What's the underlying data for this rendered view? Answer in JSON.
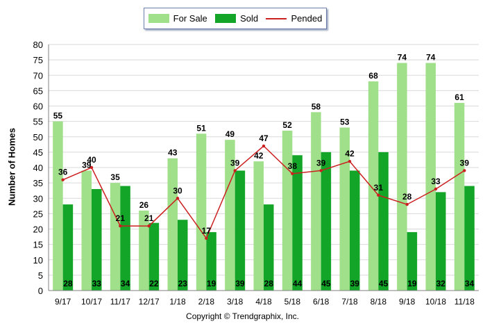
{
  "legend": {
    "for_sale": "For Sale",
    "sold": "Sold",
    "pended": "Pended"
  },
  "colors": {
    "for_sale": "#a0e08a",
    "sold": "#13a528",
    "pended": "#cc1f1f"
  },
  "copyright": "Copyright © Trendgraphix, Inc.",
  "chart_data": {
    "type": "bar",
    "ylabel": "Number of Homes",
    "xlabel": "",
    "ylim": [
      0,
      80
    ],
    "yticks": [
      0,
      5,
      10,
      15,
      20,
      25,
      30,
      35,
      40,
      45,
      50,
      55,
      60,
      65,
      70,
      75,
      80
    ],
    "grid": true,
    "legend_position": "top",
    "categories": [
      "9/17",
      "10/17",
      "11/17",
      "12/17",
      "1/18",
      "2/18",
      "3/18",
      "4/18",
      "5/18",
      "6/18",
      "7/18",
      "8/18",
      "9/18",
      "10/18",
      "11/18"
    ],
    "series": [
      {
        "name": "For Sale",
        "type": "bar",
        "values": [
          55,
          39,
          35,
          26,
          43,
          51,
          49,
          42,
          52,
          58,
          53,
          68,
          74,
          74,
          61
        ]
      },
      {
        "name": "Sold",
        "type": "bar",
        "values": [
          28,
          33,
          34,
          22,
          23,
          19,
          39,
          28,
          44,
          45,
          39,
          45,
          19,
          32,
          34
        ]
      },
      {
        "name": "Pended",
        "type": "line",
        "values": [
          36,
          40,
          21,
          21,
          30,
          17,
          39,
          47,
          38,
          39,
          42,
          31,
          28,
          33,
          39
        ]
      }
    ]
  }
}
